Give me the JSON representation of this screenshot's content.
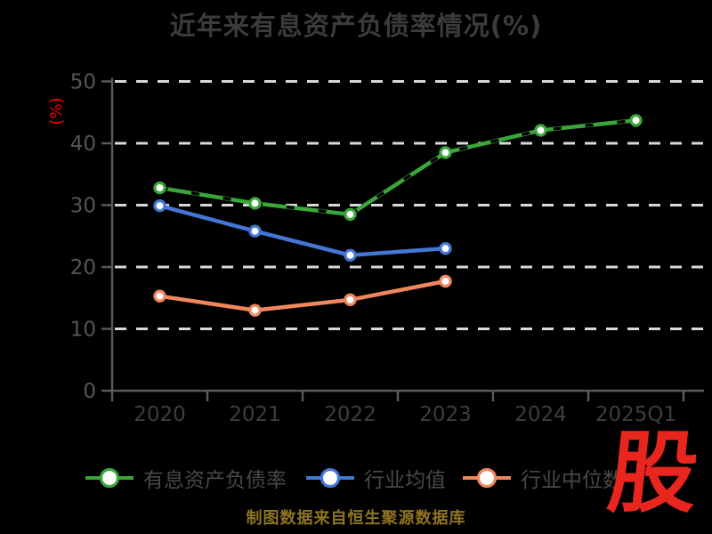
{
  "title": "近年来有息资产负债率情况(%)",
  "caption": "制图数据来自恒生聚源数据库",
  "logo_text": "股",
  "colors": {
    "background": "#000000",
    "title": "#3b3b3b",
    "grid": "#d9d9d9",
    "axis": "#5a5a5a",
    "y_tick_label": "#555555",
    "x_tick_label": "#3d3d3d",
    "legend_text": "#484848",
    "caption": "#8e7323",
    "logo": "#e8261d",
    "y_axis_name": "#fe0000",
    "marker_fill": "#ffffff",
    "dash_overlay": "#000000"
  },
  "chart_data": {
    "type": "line",
    "title": "近年来有息资产负债率情况(%)",
    "ylabel": "(%)",
    "xlabel": "",
    "categories": [
      "2020",
      "2021",
      "2022",
      "2023",
      "2024",
      "2025Q1"
    ],
    "series": [
      {
        "name": "有息资产负债率",
        "color": "#3aa73a",
        "overlay_dashed": true,
        "values": [
          32.8,
          30.3,
          28.5,
          38.5,
          42.1,
          43.7
        ]
      },
      {
        "name": "行业均值",
        "color": "#4477d4",
        "overlay_dashed": false,
        "values": [
          29.9,
          25.8,
          21.9,
          23.0,
          null,
          null
        ]
      },
      {
        "name": "行业中位数",
        "color": "#f0875e",
        "overlay_dashed": false,
        "values": [
          15.3,
          13.0,
          14.7,
          17.7,
          null,
          null
        ]
      }
    ],
    "ylim": [
      0,
      50
    ],
    "yticks": [
      0,
      10,
      20,
      30,
      40,
      50
    ],
    "grid": "horizontal-dashed-white",
    "legend_position": "bottom"
  }
}
